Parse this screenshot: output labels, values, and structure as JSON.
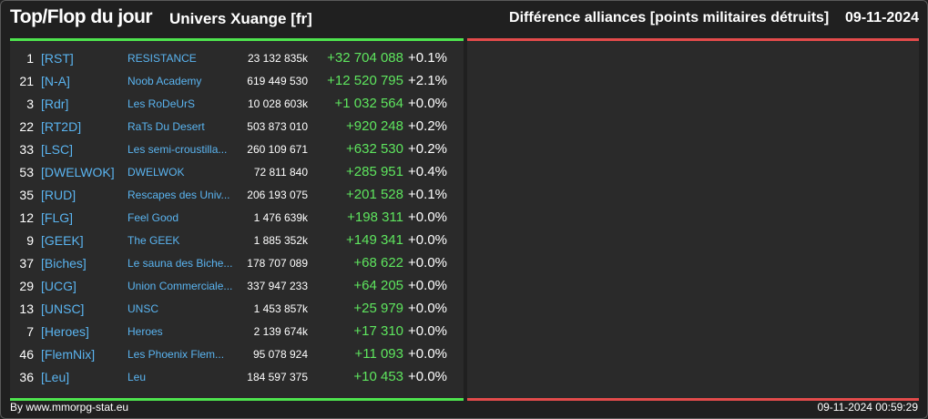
{
  "header": {
    "title": "Top/Flop du jour",
    "subtitle": "Univers Xuange [fr]",
    "right_title": "Différence alliances [points militaires détruits]",
    "date": "09-11-2024"
  },
  "rows": [
    {
      "rank": "1",
      "tag": "[RST]",
      "name": "RESISTANCE",
      "points": "23 132 835k",
      "diff": "+32 704 088",
      "pct": "+0.1%"
    },
    {
      "rank": "21",
      "tag": "[N-A]",
      "name": "Noob Academy",
      "points": "619 449 530",
      "diff": "+12 520 795",
      "pct": "+2.1%"
    },
    {
      "rank": "3",
      "tag": "[Rdr]",
      "name": "Les RoDeUrS",
      "points": "10 028 603k",
      "diff": "+1 032 564",
      "pct": "+0.0%"
    },
    {
      "rank": "22",
      "tag": "[RT2D]",
      "name": "RaTs Du Desert",
      "points": "503 873 010",
      "diff": "+920 248",
      "pct": "+0.2%"
    },
    {
      "rank": "33",
      "tag": "[LSC]",
      "name": "Les semi-croustilla...",
      "points": "260 109 671",
      "diff": "+632 530",
      "pct": "+0.2%"
    },
    {
      "rank": "53",
      "tag": "[DWELWOK]",
      "name": "DWELWOK",
      "points": "72 811 840",
      "diff": "+285 951",
      "pct": "+0.4%"
    },
    {
      "rank": "35",
      "tag": "[RUD]",
      "name": "Rescapes des Univ...",
      "points": "206 193 075",
      "diff": "+201 528",
      "pct": "+0.1%"
    },
    {
      "rank": "12",
      "tag": "[FLG]",
      "name": "Feel Good",
      "points": "1 476 639k",
      "diff": "+198 311",
      "pct": "+0.0%"
    },
    {
      "rank": "9",
      "tag": "[GEEK]",
      "name": "The GEEK",
      "points": "1 885 352k",
      "diff": "+149 341",
      "pct": "+0.0%"
    },
    {
      "rank": "37",
      "tag": "[Biches]",
      "name": "Le sauna des Biche...",
      "points": "178 707 089",
      "diff": "+68 622",
      "pct": "+0.0%"
    },
    {
      "rank": "29",
      "tag": "[UCG]",
      "name": "Union Commerciale...",
      "points": "337 947 233",
      "diff": "+64 205",
      "pct": "+0.0%"
    },
    {
      "rank": "13",
      "tag": "[UNSC]",
      "name": "UNSC",
      "points": "1 453 857k",
      "diff": "+25 979",
      "pct": "+0.0%"
    },
    {
      "rank": "7",
      "tag": "[Heroes]",
      "name": "Heroes",
      "points": "2 139 674k",
      "diff": "+17 310",
      "pct": "+0.0%"
    },
    {
      "rank": "46",
      "tag": "[FlemNix]",
      "name": "Les Phoenix Flem...",
      "points": "95 078 924",
      "diff": "+11 093",
      "pct": "+0.0%"
    },
    {
      "rank": "36",
      "tag": "[Leu]",
      "name": "Leu",
      "points": "184 597 375",
      "diff": "+10 453",
      "pct": "+0.0%"
    }
  ],
  "footer": {
    "left": "By www.mmorpg-stat.eu",
    "right": "09-11-2024 00:59:29"
  },
  "colors": {
    "top_accent": "#4ee44e",
    "flop_accent": "#e34b4b",
    "link": "#5ab4f0",
    "positive": "#5ee55e"
  }
}
